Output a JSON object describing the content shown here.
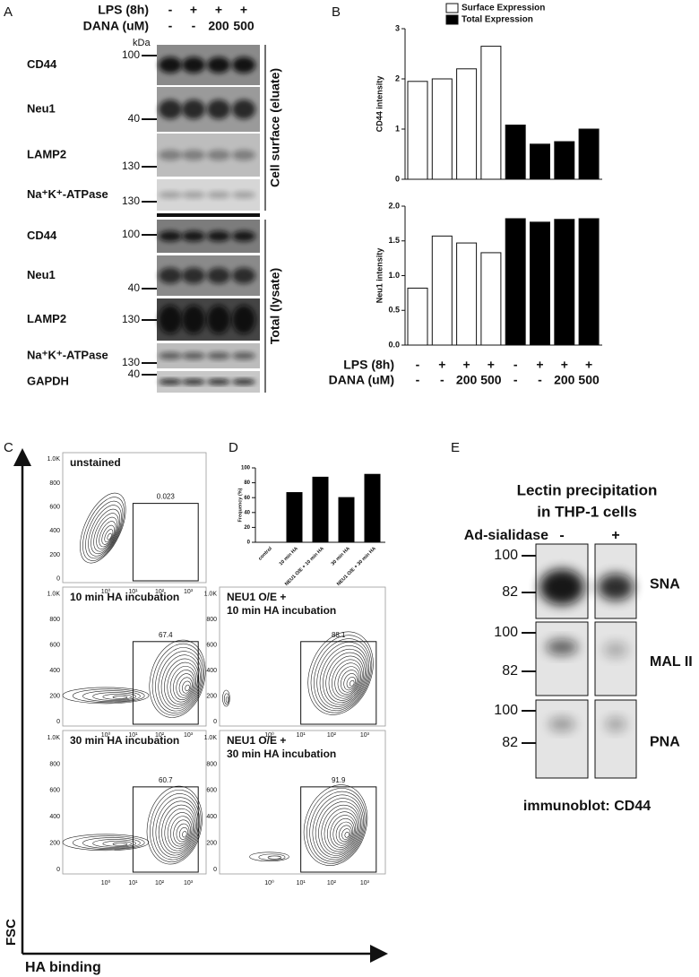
{
  "panel_labels": [
    "A",
    "B",
    "C",
    "D",
    "E"
  ],
  "panel_a": {
    "lanes": [
      {
        "label": "LPS (8h)",
        "values": [
          "-",
          "+",
          "+",
          "+"
        ]
      },
      {
        "label": "DANA (uM)",
        "values": [
          "-",
          "-",
          "200",
          "500"
        ]
      }
    ],
    "unit": "kDa",
    "sections": [
      {
        "label": "Cell surface (eluate)",
        "rows": [
          {
            "protein": "CD44",
            "marker": 100
          },
          {
            "protein": "Neu1",
            "marker": 40
          },
          {
            "protein": "LAMP2",
            "marker": 130
          },
          {
            "protein": "Na⁺K⁺-ATPase",
            "marker": 130
          }
        ]
      },
      {
        "label": "Total (lysate)",
        "rows": [
          {
            "protein": "CD44",
            "marker": 100
          },
          {
            "protein": "Neu1",
            "marker": 40
          },
          {
            "protein": "LAMP2",
            "marker": 130
          },
          {
            "protein": "Na⁺K⁺-ATPase",
            "marker": 130
          },
          {
            "protein": "GAPDH",
            "marker": 40
          }
        ]
      }
    ]
  },
  "chart_data": [
    {
      "type": "bar",
      "ylabel": "CD44 intensity",
      "series": [
        {
          "name": "Surface Expression",
          "color": "#ffffff",
          "values": [
            1.95,
            2.0,
            2.2,
            2.65
          ]
        },
        {
          "name": "Total Expression",
          "color": "#000000",
          "values": [
            1.08,
            0.7,
            0.75,
            1.0
          ]
        }
      ],
      "ylim": [
        0,
        3
      ],
      "yticks": [
        0,
        1,
        2,
        3
      ]
    },
    {
      "type": "bar",
      "ylabel": "Neu1 intensity",
      "series": [
        {
          "color": "#ffffff",
          "values": [
            0.82,
            1.57,
            1.47,
            1.33
          ]
        },
        {
          "color": "#000000",
          "values": [
            1.82,
            1.77,
            1.81,
            1.82
          ]
        }
      ],
      "ylim": [
        0,
        2
      ],
      "yticks": [
        {
          "value": 0,
          "label": "0.0"
        },
        0.5,
        {
          "value": 1,
          "label": "1.0"
        },
        1.5,
        {
          "value": 2,
          "label": "2.0"
        }
      ]
    },
    {
      "type": "bar",
      "ylabel": "Frequency (%)",
      "categories": [
        "control",
        "10 min HA",
        "NEU1 O/E + 10 min HA",
        "30 min HA",
        "NEU1 O/E + 30 min HA"
      ],
      "values": [
        0,
        67.4,
        88.1,
        60.7,
        91.9
      ],
      "color": "#000000",
      "ylim": [
        0,
        100
      ],
      "yticks": [
        0,
        20,
        40,
        60,
        80,
        100
      ]
    }
  ],
  "panel_b_lanes": [
    {
      "label": "LPS (8h)",
      "values": [
        "-",
        "+",
        "+",
        "+",
        "-",
        "+",
        "+",
        "+"
      ]
    },
    {
      "label": "DANA (uM)",
      "values": [
        "-",
        "-",
        "200",
        "500",
        "-",
        "-",
        "200",
        "500"
      ]
    }
  ],
  "panel_c": {
    "y_axis": "FSC",
    "x_axis": "HA binding",
    "y_ticks": [
      "1.0K",
      "800",
      "600",
      "400",
      "200",
      "0"
    ],
    "x_ticks": [
      "10⁰",
      "10¹",
      "10²",
      "10³"
    ],
    "plots": [
      {
        "title_lines": [
          "unstained"
        ],
        "gate": 0.023
      },
      {
        "title_lines": [
          "10 min HA incubation"
        ],
        "gate": 67.4
      },
      {
        "title_lines": [
          "30 min HA incubation"
        ],
        "gate": 60.7
      },
      {
        "title_lines": [
          "NEU1 O/E +",
          "10 min HA incubation"
        ],
        "gate": 88.1
      },
      {
        "title_lines": [
          "NEU1 O/E +",
          "30 min HA incubation"
        ],
        "gate": 91.9
      }
    ]
  },
  "panel_e": {
    "title_lines": [
      "Lectin precipitation",
      "in THP-1 cells"
    ],
    "treatment": "Ad-sialidase",
    "lanes": [
      "-",
      "+"
    ],
    "rows": [
      {
        "lectin": "SNA",
        "markers": [
          100,
          82
        ]
      },
      {
        "lectin": "MAL II",
        "markers": [
          100,
          82
        ]
      },
      {
        "lectin": "PNA",
        "markers": [
          100,
          82
        ]
      }
    ],
    "footer": "immunoblot: CD44"
  }
}
